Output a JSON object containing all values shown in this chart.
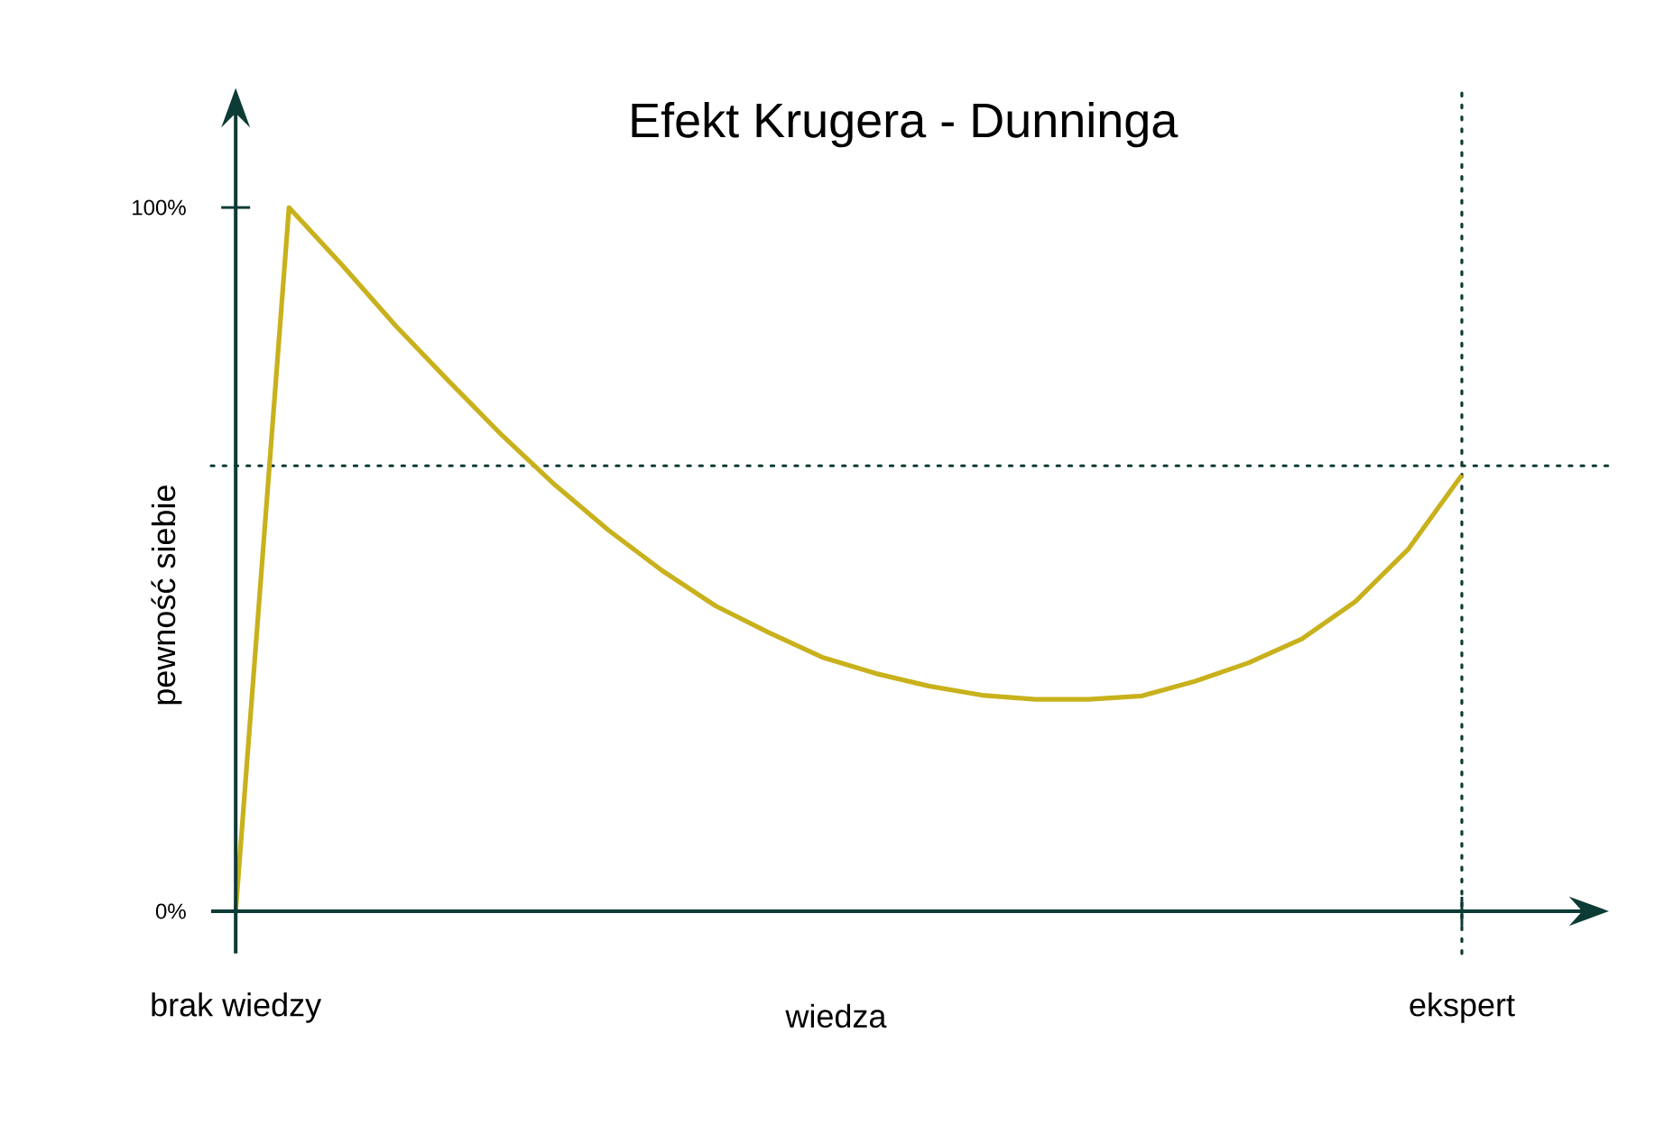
{
  "chart_data": {
    "type": "line",
    "title": "Efekt Krugera - Dunninga",
    "xlabel": "wiedza",
    "ylabel": "pewność siebie",
    "categories": [
      "brak wiedzy",
      null,
      null,
      null,
      null,
      null,
      null,
      null,
      null,
      null,
      null,
      null,
      null,
      null,
      null,
      null,
      null,
      null,
      null,
      null,
      null,
      null,
      null,
      "ekspert"
    ],
    "ylim": [
      -6,
      117
    ],
    "yticks": [
      {
        "value": 0,
        "label": "0%"
      },
      {
        "value": 100,
        "label": "100%"
      }
    ],
    "series": [
      {
        "color": "#c8b11c",
        "values": [
          0,
          100,
          91.8,
          83.2,
          75.3,
          67.6,
          60.5,
          54.1,
          48.4,
          43.4,
          39.6,
          36.1,
          33.8,
          32.0,
          30.7,
          30.1,
          30.1,
          30.6,
          32.7,
          35.3,
          38.7,
          44.0,
          51.5,
          62
        ]
      }
    ],
    "ref_lines": [
      {
        "axis": "y",
        "value": 63.3,
        "color": "#0d3b35",
        "line_style": "dotted"
      },
      {
        "axis": "x",
        "value": "ekspert",
        "color": "#0d3b35",
        "line_style": "dotted"
      }
    ]
  }
}
